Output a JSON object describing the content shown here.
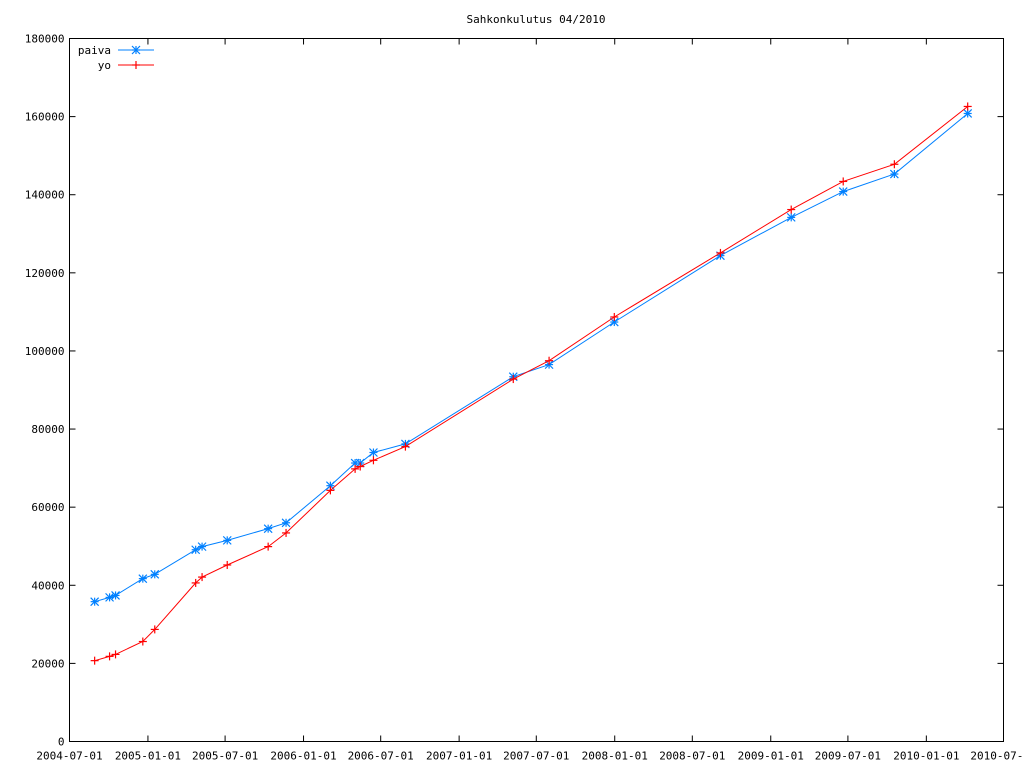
{
  "chart_data": {
    "type": "line",
    "title": "Sahkonkulutus 04/2010",
    "xlabel": "",
    "ylabel": "",
    "xlim": [
      "2004-07-01",
      "2010-07-01"
    ],
    "ylim": [
      0,
      180000
    ],
    "x_ticks": [
      "2004-07-01",
      "2005-01-01",
      "2005-07-01",
      "2006-01-01",
      "2006-07-01",
      "2007-01-01",
      "2007-07-01",
      "2008-01-01",
      "2008-07-01",
      "2009-01-01",
      "2009-07-01",
      "2010-01-01",
      "2010-07-01"
    ],
    "y_ticks": [
      0,
      20000,
      40000,
      60000,
      80000,
      100000,
      120000,
      140000,
      160000,
      180000
    ],
    "grid": false,
    "legend_position": "top-left",
    "x": [
      "2004-08-29",
      "2004-10-03",
      "2004-10-17",
      "2004-12-20",
      "2005-01-17",
      "2005-04-23",
      "2005-05-08",
      "2005-07-06",
      "2005-10-10",
      "2005-11-21",
      "2006-03-05",
      "2006-05-02",
      "2006-05-14",
      "2006-06-14",
      "2006-08-28",
      "2007-05-08",
      "2007-07-31",
      "2007-12-31",
      "2008-09-05",
      "2009-02-18",
      "2009-06-20",
      "2009-10-18",
      "2010-04-08"
    ],
    "series": [
      {
        "name": "paiva",
        "color": "#0080ff",
        "marker": "asterisk",
        "values": [
          35800,
          36900,
          37400,
          41700,
          42800,
          49100,
          49900,
          51500,
          54500,
          56000,
          65500,
          71300,
          71300,
          74000,
          76200,
          93400,
          96500,
          107400,
          124400,
          134200,
          140800,
          145300,
          160800
        ]
      },
      {
        "name": "yo",
        "color": "#ff0000",
        "marker": "plus",
        "values": [
          20700,
          21800,
          22300,
          25600,
          28700,
          40600,
          42100,
          45200,
          49900,
          53400,
          64300,
          69800,
          70400,
          72000,
          75500,
          92800,
          97500,
          108700,
          125100,
          136200,
          143400,
          147800,
          162600
        ]
      }
    ]
  }
}
